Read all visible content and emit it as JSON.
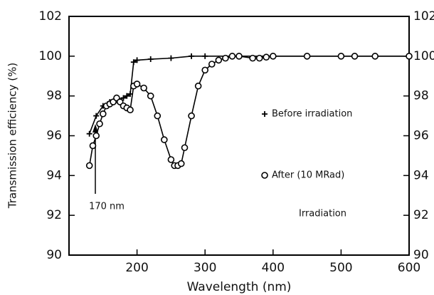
{
  "chart_data": {
    "type": "line",
    "xlabel": "Wavelength (nm)",
    "ylabel": "Transmission efficiency (%)",
    "xlim": [
      100,
      600
    ],
    "xticks": [
      200,
      300,
      400,
      500,
      600
    ],
    "ylim": [
      90,
      102
    ],
    "yticks": [
      90,
      92,
      94,
      96,
      98,
      100,
      102
    ],
    "y2lim": [
      90,
      102
    ],
    "y2ticks": [
      90,
      92,
      94,
      96,
      98,
      100,
      102
    ],
    "annotations": [
      "170 nm",
      "Irradiation"
    ],
    "series": [
      {
        "name": "Before irradiation",
        "color": "#000000",
        "marker": "plus",
        "x": [
          130,
          140,
          150,
          160,
          170,
          180,
          185,
          190,
          195,
          200,
          220,
          250,
          280,
          300,
          350,
          400,
          450,
          500,
          550,
          600
        ],
        "values": [
          96.1,
          97,
          97.5,
          97.7,
          97.8,
          97.9,
          98,
          98.1,
          99.7,
          99.8,
          99.85,
          99.9,
          100,
          100,
          100,
          100,
          100,
          100,
          100,
          100
        ]
      },
      {
        "name": "After (10 MRad)",
        "color": "#000000",
        "marker": "circle",
        "x": [
          130,
          135,
          140,
          145,
          150,
          155,
          160,
          165,
          170,
          175,
          180,
          185,
          190,
          195,
          200,
          210,
          220,
          230,
          240,
          250,
          255,
          260,
          265,
          270,
          280,
          290,
          300,
          310,
          320,
          330,
          340,
          350,
          370,
          380,
          390,
          400,
          450,
          500,
          520,
          550,
          600
        ],
        "values": [
          94.5,
          95.5,
          96,
          96.6,
          97.1,
          97.5,
          97.6,
          97.7,
          97.9,
          97.7,
          97.5,
          97.4,
          97.3,
          98.5,
          98.6,
          98.4,
          98,
          97,
          95.8,
          94.8,
          94.5,
          94.5,
          94.6,
          95.4,
          97,
          98.5,
          99.3,
          99.6,
          99.8,
          99.9,
          100,
          100,
          99.9,
          99.9,
          99.95,
          100,
          100,
          100,
          100,
          100,
          100
        ]
      }
    ]
  }
}
